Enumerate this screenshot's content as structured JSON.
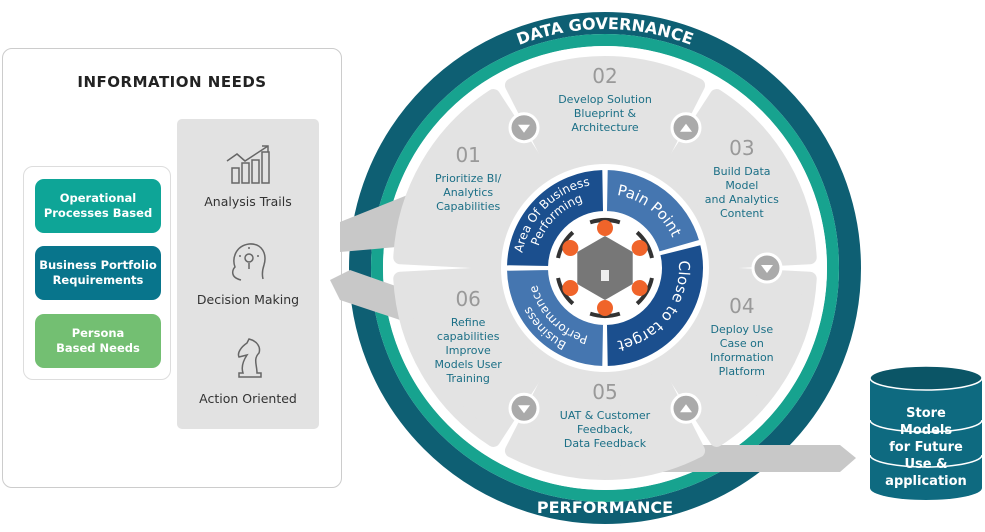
{
  "info_needs": {
    "title": "INFORMATION NEEDS",
    "pills": [
      {
        "label": "Operational\nProcesses Based",
        "color": "#0ea597"
      },
      {
        "label": "Business Portfolio\nRequirements",
        "color": "#08758c"
      },
      {
        "label": "Persona\nBased Needs",
        "color": "#73bf72"
      }
    ],
    "items": [
      {
        "label": "Analysis Trails",
        "icon": "bar-chart-trend-icon"
      },
      {
        "label": "Decision Making",
        "icon": "head-lightbulb-icon"
      },
      {
        "label": "Action Oriented",
        "icon": "chess-knight-icon"
      }
    ]
  },
  "ring": {
    "top_label": "DATA GOVERNANCE",
    "bottom_label": "PERFORMANCE",
    "color_outer": "#0e5f73",
    "color_inner": "#17a38f"
  },
  "steps": [
    {
      "num": "01",
      "lines": [
        "Prioritize BI/",
        "Analytics",
        "Capabilities"
      ]
    },
    {
      "num": "02",
      "lines": [
        "Develop Solution",
        "Blueprint &",
        "Architecture"
      ]
    },
    {
      "num": "03",
      "lines": [
        "Build Data",
        "Model",
        "and Analytics",
        "Content"
      ]
    },
    {
      "num": "04",
      "lines": [
        "Deploy Use",
        "Case on",
        "Information",
        "Platform"
      ]
    },
    {
      "num": "05",
      "lines": [
        "UAT & Customer",
        "Feedback,",
        "Data Feedback"
      ]
    },
    {
      "num": "06",
      "lines": [
        "Refine",
        "capabilities",
        "Improve",
        "Models User",
        "Training"
      ]
    }
  ],
  "center": {
    "segments": [
      {
        "label": "Area Of Business",
        "label2": "Performing",
        "color": "#1b4f8e"
      },
      {
        "label": "Pain Point",
        "color": "#4576b0"
      },
      {
        "label": "Close to target",
        "color": "#1b4f8e"
      },
      {
        "label": "Business",
        "label2": "Performance",
        "color": "#4576b0"
      }
    ],
    "accent": "#f0642a"
  },
  "store": {
    "lines": [
      "Store",
      "Models",
      "for Future",
      "Use &",
      "application"
    ],
    "color": "#0e6a80"
  }
}
